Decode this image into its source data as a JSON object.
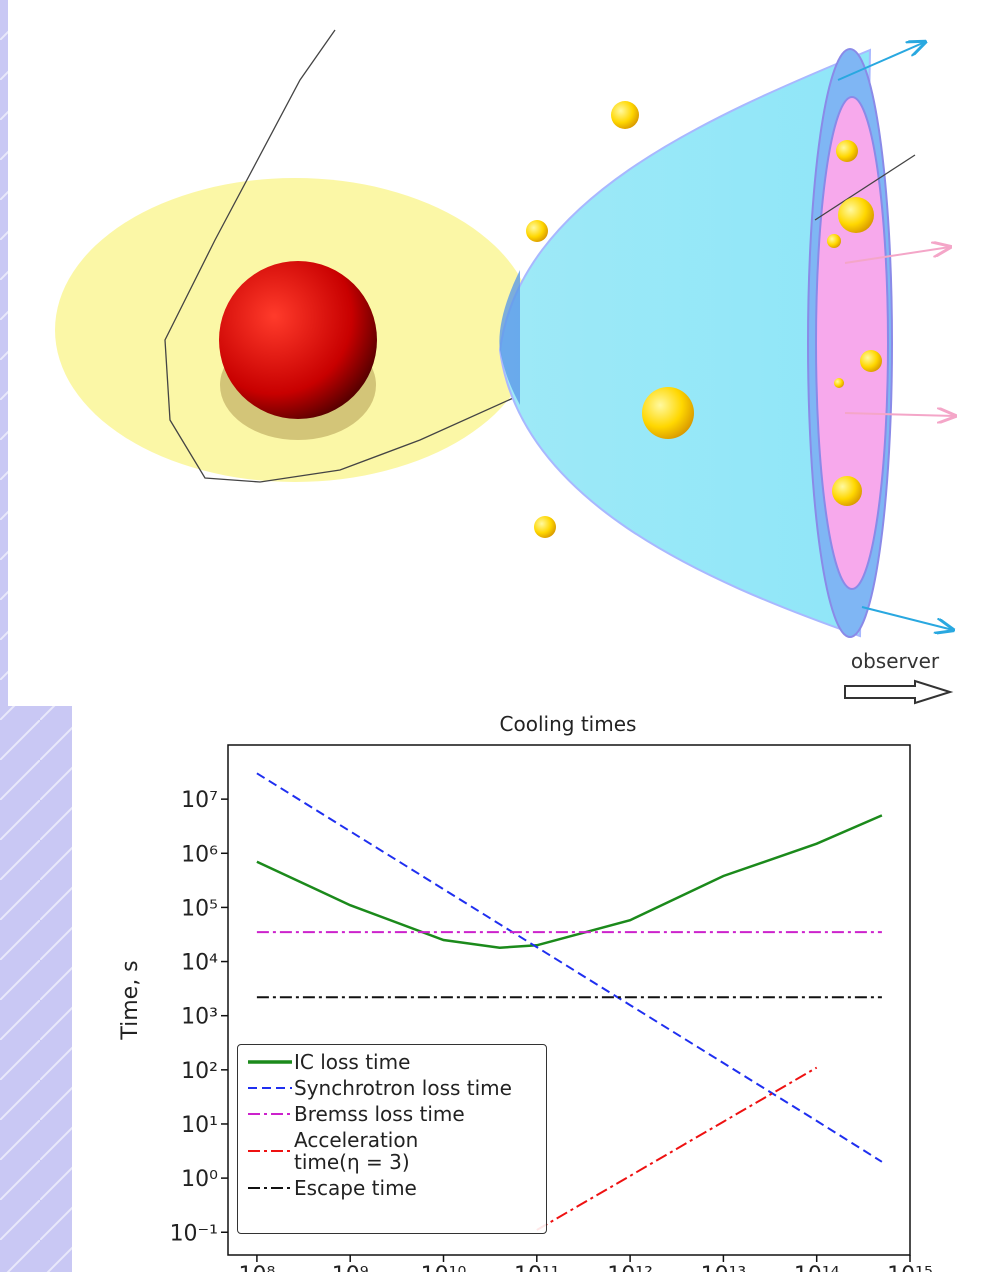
{
  "illustration": {
    "label": "observer"
  },
  "chart_data": {
    "type": "line",
    "title": "Cooling times",
    "y_label": "Time, s",
    "xscale": "log",
    "yscale": "log",
    "xlim": [
      49000000.0,
      1000000000000000.0
    ],
    "ylim": [
      0.038,
      100000000.0
    ],
    "xticks": [
      {
        "value": 100000000.0,
        "label": "10⁸"
      },
      {
        "value": 1000000000.0,
        "label": "10⁹"
      },
      {
        "value": 10000000000.0,
        "label": "10¹⁰"
      },
      {
        "value": 100000000000.0,
        "label": "10¹¹"
      },
      {
        "value": 1000000000000.0,
        "label": "10¹²"
      },
      {
        "value": 10000000000000.0,
        "label": "10¹³"
      },
      {
        "value": 100000000000000.0,
        "label": "10¹⁴"
      },
      {
        "value": 1000000000000000.0,
        "label": "10¹⁵"
      }
    ],
    "yticks": [
      {
        "value": 0.1,
        "label": "10⁻¹"
      },
      {
        "value": 1,
        "label": "10⁰"
      },
      {
        "value": 10,
        "label": "10¹"
      },
      {
        "value": 100,
        "label": "10²"
      },
      {
        "value": 1000,
        "label": "10³"
      },
      {
        "value": 10000,
        "label": "10⁴"
      },
      {
        "value": 100000,
        "label": "10⁵"
      },
      {
        "value": 1000000,
        "label": "10⁶"
      },
      {
        "value": 10000000,
        "label": "10⁷"
      }
    ],
    "grid": false,
    "legend": "lower left",
    "x": [
      100000000.0,
      1000000000.0,
      10000000000.0,
      40000000000.0,
      100000000000.0,
      1000000000000.0,
      10000000000000.0,
      100000000000000.0,
      500000000000000.0
    ],
    "series": [
      {
        "name": "IC loss time",
        "color": "#1b8a1b",
        "style": "solid",
        "values": [
          700000,
          110000,
          25000,
          18000,
          20000,
          58000,
          380000,
          1500000,
          5000000
        ]
      },
      {
        "name": "Synchrotron loss time",
        "color": "#1f2ff0",
        "style": "dashed",
        "values": [
          30000000,
          2550000,
          217000,
          49000,
          18500,
          1570,
          134,
          11.4,
          2
        ]
      },
      {
        "name": "Bremss loss time",
        "color": "#cc22cc",
        "style": "dashdot",
        "values": [
          35000,
          35000,
          35000,
          35000,
          35000,
          35000,
          35000,
          35000,
          35000
        ]
      },
      {
        "name": "Acceleration time(η = 3)",
        "color": "#ee1111",
        "style": "dashdot",
        "values": [
          null,
          null,
          null,
          null,
          0.11,
          1.1,
          11,
          110,
          null
        ]
      },
      {
        "name": "Escape time",
        "color": "#111111",
        "style": "dashdot",
        "values": [
          2200,
          2200,
          2200,
          2200,
          2200,
          2200,
          2200,
          2200,
          2200
        ]
      }
    ]
  }
}
